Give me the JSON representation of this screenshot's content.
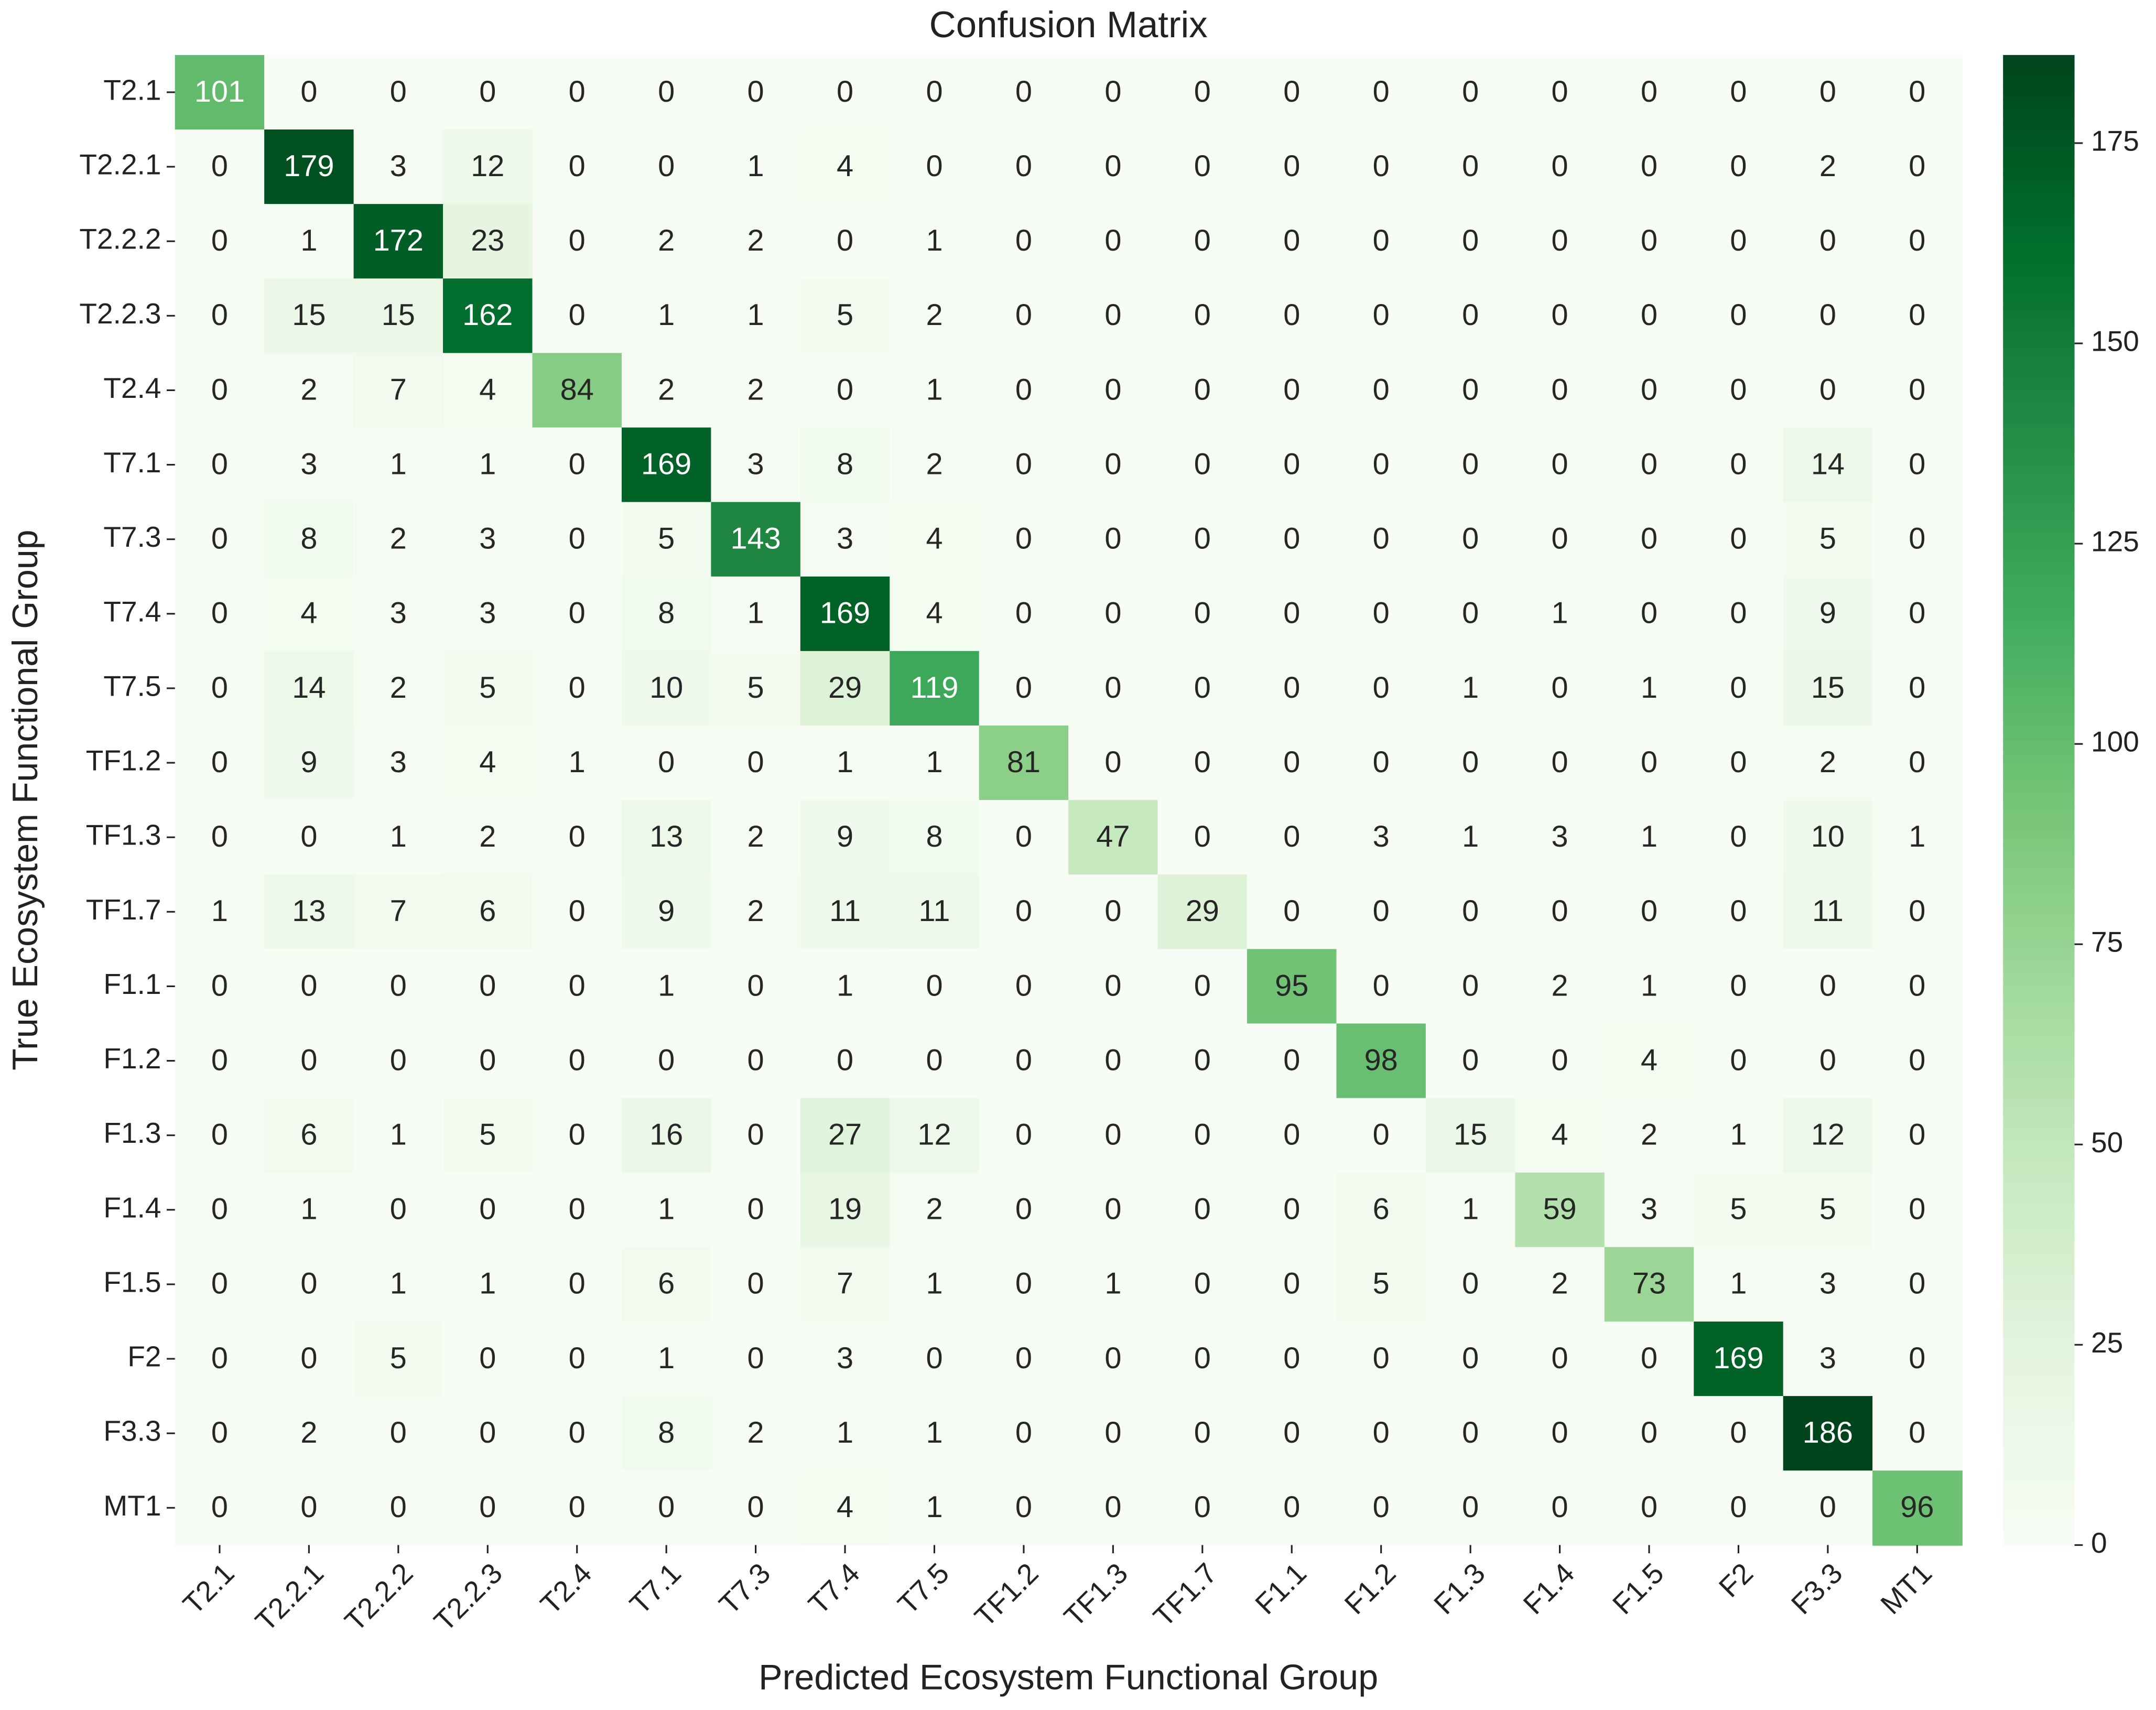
{
  "chart_data": {
    "type": "heatmap",
    "title": "Confusion Matrix",
    "x_label": "Predicted Ecosystem Functional Group",
    "y_label": "True Ecosystem Functional Group",
    "x_categories": [
      "T2.1",
      "T2.2.1",
      "T2.2.2",
      "T2.2.3",
      "T2.4",
      "T7.1",
      "T7.3",
      "T7.4",
      "T7.5",
      "TF1.2",
      "TF1.3",
      "TF1.7",
      "F1.1",
      "F1.2",
      "F1.3",
      "F1.4",
      "F1.5",
      "F2",
      "F3.3",
      "MT1"
    ],
    "y_categories": [
      "T2.1",
      "T2.2.1",
      "T2.2.2",
      "T2.2.3",
      "T2.4",
      "T7.1",
      "T7.3",
      "T7.4",
      "T7.5",
      "TF1.2",
      "TF1.3",
      "TF1.7",
      "F1.1",
      "F1.2",
      "F1.3",
      "F1.4",
      "F1.5",
      "F2",
      "F3.3",
      "MT1"
    ],
    "values": [
      [
        101,
        0,
        0,
        0,
        0,
        0,
        0,
        0,
        0,
        0,
        0,
        0,
        0,
        0,
        0,
        0,
        0,
        0,
        0,
        0
      ],
      [
        0,
        179,
        3,
        12,
        0,
        0,
        1,
        4,
        0,
        0,
        0,
        0,
        0,
        0,
        0,
        0,
        0,
        0,
        2,
        0
      ],
      [
        0,
        1,
        172,
        23,
        0,
        2,
        2,
        0,
        1,
        0,
        0,
        0,
        0,
        0,
        0,
        0,
        0,
        0,
        0,
        0
      ],
      [
        0,
        15,
        15,
        162,
        0,
        1,
        1,
        5,
        2,
        0,
        0,
        0,
        0,
        0,
        0,
        0,
        0,
        0,
        0,
        0
      ],
      [
        0,
        2,
        7,
        4,
        84,
        2,
        2,
        0,
        1,
        0,
        0,
        0,
        0,
        0,
        0,
        0,
        0,
        0,
        0,
        0
      ],
      [
        0,
        3,
        1,
        1,
        0,
        169,
        3,
        8,
        2,
        0,
        0,
        0,
        0,
        0,
        0,
        0,
        0,
        0,
        14,
        0
      ],
      [
        0,
        8,
        2,
        3,
        0,
        5,
        143,
        3,
        4,
        0,
        0,
        0,
        0,
        0,
        0,
        0,
        0,
        0,
        5,
        0
      ],
      [
        0,
        4,
        3,
        3,
        0,
        8,
        1,
        169,
        4,
        0,
        0,
        0,
        0,
        0,
        0,
        1,
        0,
        0,
        9,
        0
      ],
      [
        0,
        14,
        2,
        5,
        0,
        10,
        5,
        29,
        119,
        0,
        0,
        0,
        0,
        0,
        1,
        0,
        1,
        0,
        15,
        0
      ],
      [
        0,
        9,
        3,
        4,
        1,
        0,
        0,
        1,
        1,
        81,
        0,
        0,
        0,
        0,
        0,
        0,
        0,
        0,
        2,
        0
      ],
      [
        0,
        0,
        1,
        2,
        0,
        13,
        2,
        9,
        8,
        0,
        47,
        0,
        0,
        3,
        1,
        3,
        1,
        0,
        10,
        1
      ],
      [
        1,
        13,
        7,
        6,
        0,
        9,
        2,
        11,
        11,
        0,
        0,
        29,
        0,
        0,
        0,
        0,
        0,
        0,
        11,
        0
      ],
      [
        0,
        0,
        0,
        0,
        0,
        1,
        0,
        1,
        0,
        0,
        0,
        0,
        95,
        0,
        0,
        2,
        1,
        0,
        0,
        0
      ],
      [
        0,
        0,
        0,
        0,
        0,
        0,
        0,
        0,
        0,
        0,
        0,
        0,
        0,
        98,
        0,
        0,
        4,
        0,
        0,
        0
      ],
      [
        0,
        6,
        1,
        5,
        0,
        16,
        0,
        27,
        12,
        0,
        0,
        0,
        0,
        0,
        15,
        4,
        2,
        1,
        12,
        0
      ],
      [
        0,
        1,
        0,
        0,
        0,
        1,
        0,
        19,
        2,
        0,
        0,
        0,
        0,
        6,
        1,
        59,
        3,
        5,
        5,
        0
      ],
      [
        0,
        0,
        1,
        1,
        0,
        6,
        0,
        7,
        1,
        0,
        1,
        0,
        0,
        5,
        0,
        2,
        73,
        1,
        3,
        0
      ],
      [
        0,
        0,
        5,
        0,
        0,
        1,
        0,
        3,
        0,
        0,
        0,
        0,
        0,
        0,
        0,
        0,
        0,
        169,
        3,
        0
      ],
      [
        0,
        2,
        0,
        0,
        0,
        8,
        2,
        1,
        1,
        0,
        0,
        0,
        0,
        0,
        0,
        0,
        0,
        0,
        186,
        0
      ],
      [
        0,
        0,
        0,
        0,
        0,
        0,
        0,
        4,
        1,
        0,
        0,
        0,
        0,
        0,
        0,
        0,
        0,
        0,
        0,
        96
      ]
    ],
    "colormap": "Greens",
    "clim": [
      0,
      186
    ],
    "cticks": [
      0,
      25,
      50,
      75,
      100,
      125,
      150,
      175
    ]
  }
}
